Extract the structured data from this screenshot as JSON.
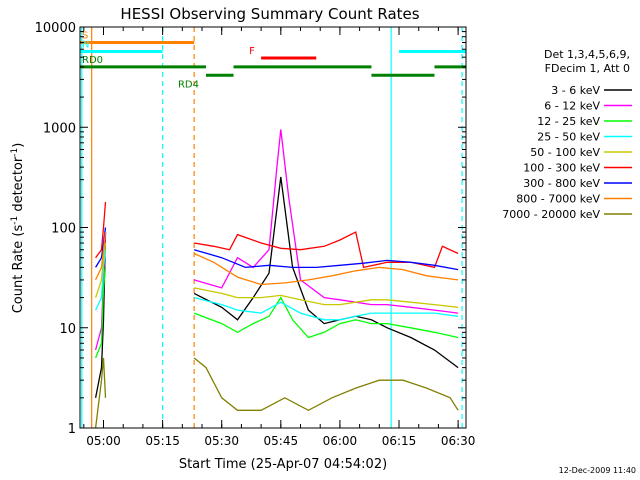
{
  "chart_data": {
    "type": "line",
    "title": "HESSI Observing Summary Count Rates",
    "xlabel": "Start Time (25-Apr-07 04:54:02)",
    "ylabel_main": "Count Rate (s",
    "ylabel_sup1": "-1",
    "ylabel_mid": " detector",
    "ylabel_sup2": "-1",
    "ylabel_end": ")",
    "xlim": [
      "04:54:02",
      "06:32:00"
    ],
    "ylim": [
      1,
      10000
    ],
    "yscale": "log",
    "x_ticks": [
      "05:00",
      "05:15",
      "05:30",
      "05:45",
      "06:00",
      "06:15",
      "06:30"
    ],
    "y_ticks": [
      "1",
      "10",
      "100",
      "1000",
      "10000"
    ],
    "footer": "12-Dec-2009 11:40",
    "legend_title": [
      "Det 1,3,4,5,6,9,",
      "FDecim 1, Att 0"
    ],
    "legend_position": "right",
    "series": [
      {
        "name": "3 - 6 keV",
        "color": "#000000",
        "points": [
          [
            "04:58:00",
            2
          ],
          [
            "04:59:30",
            4
          ],
          [
            "05:00:00",
            12
          ],
          [
            "05:00:30",
            90
          ],
          [
            "05:01:00",
            null
          ],
          [
            "05:23:00",
            22
          ],
          [
            "05:30:00",
            16
          ],
          [
            "05:34:00",
            12
          ],
          [
            "05:38:00",
            20
          ],
          [
            "05:42:00",
            35
          ],
          [
            "05:45:00",
            320
          ],
          [
            "05:48:00",
            40
          ],
          [
            "05:52:00",
            15
          ],
          [
            "05:56:00",
            11
          ],
          [
            "06:00:00",
            12
          ],
          [
            "06:04:00",
            13
          ],
          [
            "06:08:00",
            12
          ],
          [
            "06:12:00",
            10
          ],
          [
            "06:18:00",
            8
          ],
          [
            "06:24:00",
            6
          ],
          [
            "06:30:00",
            4
          ]
        ]
      },
      {
        "name": "6 - 12 keV",
        "color": "#ff00ff",
        "points": [
          [
            "04:58:00",
            6
          ],
          [
            "04:59:30",
            10
          ],
          [
            "05:00:00",
            30
          ],
          [
            "05:00:30",
            90
          ],
          [
            "05:01:00",
            null
          ],
          [
            "05:23:00",
            30
          ],
          [
            "05:30:00",
            25
          ],
          [
            "05:34:00",
            50
          ],
          [
            "05:38:00",
            40
          ],
          [
            "05:42:00",
            60
          ],
          [
            "05:44:00",
            400
          ],
          [
            "05:45:00",
            950
          ],
          [
            "05:47:00",
            200
          ],
          [
            "05:50:00",
            30
          ],
          [
            "05:56:00",
            20
          ],
          [
            "06:00:00",
            19
          ],
          [
            "06:04:00",
            18
          ],
          [
            "06:08:00",
            17
          ],
          [
            "06:12:00",
            17
          ],
          [
            "06:18:00",
            16
          ],
          [
            "06:24:00",
            15
          ],
          [
            "06:30:00",
            14
          ]
        ]
      },
      {
        "name": "12 - 25 keV",
        "color": "#00ff00",
        "points": [
          [
            "04:58:00",
            5
          ],
          [
            "04:59:30",
            7
          ],
          [
            "05:00:00",
            25
          ],
          [
            "05:00:30",
            40
          ],
          [
            "05:01:00",
            null
          ],
          [
            "05:23:00",
            14
          ],
          [
            "05:30:00",
            11
          ],
          [
            "05:34:00",
            9
          ],
          [
            "05:38:00",
            11
          ],
          [
            "05:42:00",
            13
          ],
          [
            "05:45:00",
            20
          ],
          [
            "05:48:00",
            12
          ],
          [
            "05:52:00",
            8
          ],
          [
            "05:56:00",
            9
          ],
          [
            "06:00:00",
            11
          ],
          [
            "06:04:00",
            12
          ],
          [
            "06:08:00",
            11
          ],
          [
            "06:12:00",
            11
          ],
          [
            "06:18:00",
            10
          ],
          [
            "06:24:00",
            9
          ],
          [
            "06:30:00",
            8
          ]
        ]
      },
      {
        "name": "25 - 50 keV",
        "color": "#00ffff",
        "points": [
          [
            "04:58:00",
            15
          ],
          [
            "04:59:30",
            20
          ],
          [
            "05:00:00",
            40
          ],
          [
            "05:00:30",
            60
          ],
          [
            "05:01:00",
            null
          ],
          [
            "05:23:00",
            20
          ],
          [
            "05:30:00",
            17
          ],
          [
            "05:34:00",
            15
          ],
          [
            "05:40:00",
            14
          ],
          [
            "05:45:00",
            18
          ],
          [
            "05:50:00",
            14
          ],
          [
            "05:56:00",
            12
          ],
          [
            "06:00:00",
            12
          ],
          [
            "06:04:00",
            13
          ],
          [
            "06:08:00",
            14
          ],
          [
            "06:12:00",
            14
          ],
          [
            "06:18:00",
            14
          ],
          [
            "06:24:00",
            14
          ],
          [
            "06:30:00",
            13
          ]
        ]
      },
      {
        "name": "50 - 100 keV",
        "color": "#c8c800",
        "points": [
          [
            "04:58:00",
            20
          ],
          [
            "04:59:30",
            30
          ],
          [
            "05:00:00",
            50
          ],
          [
            "05:00:30",
            70
          ],
          [
            "05:01:00",
            null
          ],
          [
            "05:23:00",
            25
          ],
          [
            "05:30:00",
            22
          ],
          [
            "05:34:00",
            20
          ],
          [
            "05:40:00",
            20
          ],
          [
            "05:45:00",
            21
          ],
          [
            "05:50:00",
            19
          ],
          [
            "05:56:00",
            17
          ],
          [
            "06:00:00",
            17
          ],
          [
            "06:04:00",
            18
          ],
          [
            "06:08:00",
            19
          ],
          [
            "06:12:00",
            19
          ],
          [
            "06:18:00",
            18
          ],
          [
            "06:24:00",
            17
          ],
          [
            "06:30:00",
            16
          ]
        ]
      },
      {
        "name": "100 - 300 keV",
        "color": "#ff0000",
        "points": [
          [
            "04:58:00",
            50
          ],
          [
            "04:59:30",
            60
          ],
          [
            "05:00:00",
            100
          ],
          [
            "05:00:30",
            180
          ],
          [
            "05:01:00",
            null
          ],
          [
            "05:23:00",
            70
          ],
          [
            "05:28:00",
            65
          ],
          [
            "05:32:00",
            60
          ],
          [
            "05:34:00",
            85
          ],
          [
            "05:40:00",
            70
          ],
          [
            "05:45:00",
            62
          ],
          [
            "05:50:00",
            60
          ],
          [
            "05:56:00",
            65
          ],
          [
            "06:00:00",
            75
          ],
          [
            "06:04:00",
            90
          ],
          [
            "06:06:00",
            40
          ],
          [
            "06:12:00",
            45
          ],
          [
            "06:18:00",
            45
          ],
          [
            "06:24:00",
            40
          ],
          [
            "06:26:00",
            65
          ],
          [
            "06:30:00",
            55
          ]
        ]
      },
      {
        "name": "300 - 800 keV",
        "color": "#0000ff",
        "points": [
          [
            "04:58:00",
            40
          ],
          [
            "04:59:30",
            50
          ],
          [
            "05:00:00",
            70
          ],
          [
            "05:00:30",
            100
          ],
          [
            "05:01:00",
            null
          ],
          [
            "05:23:00",
            60
          ],
          [
            "05:30:00",
            50
          ],
          [
            "05:36:00",
            40
          ],
          [
            "05:42:00",
            42
          ],
          [
            "05:48:00",
            40
          ],
          [
            "05:54:00",
            40
          ],
          [
            "06:00:00",
            42
          ],
          [
            "06:06:00",
            44
          ],
          [
            "06:12:00",
            47
          ],
          [
            "06:18:00",
            45
          ],
          [
            "06:24:00",
            42
          ],
          [
            "06:30:00",
            38
          ]
        ]
      },
      {
        "name": "800 - 7000 keV",
        "color": "#ff8000",
        "points": [
          [
            "04:58:00",
            30
          ],
          [
            "04:59:30",
            40
          ],
          [
            "05:00:00",
            60
          ],
          [
            "05:00:30",
            90
          ],
          [
            "05:01:00",
            null
          ],
          [
            "05:23:00",
            55
          ],
          [
            "05:28:00",
            45
          ],
          [
            "05:34:00",
            32
          ],
          [
            "05:40:00",
            27
          ],
          [
            "05:46:00",
            28
          ],
          [
            "05:52:00",
            30
          ],
          [
            "05:58:00",
            33
          ],
          [
            "06:04:00",
            37
          ],
          [
            "06:10:00",
            40
          ],
          [
            "06:16:00",
            38
          ],
          [
            "06:22:00",
            33
          ],
          [
            "06:30:00",
            30
          ]
        ]
      },
      {
        "name": "7000 - 20000 keV",
        "color": "#808000",
        "points": [
          [
            "04:58:00",
            1
          ],
          [
            "04:59:30",
            3
          ],
          [
            "05:00:00",
            5
          ],
          [
            "05:00:30",
            2
          ],
          [
            "05:01:00",
            null
          ],
          [
            "05:23:00",
            5
          ],
          [
            "05:26:00",
            4
          ],
          [
            "05:30:00",
            2
          ],
          [
            "05:34:00",
            1.5
          ],
          [
            "05:40:00",
            1.5
          ],
          [
            "05:46:00",
            2
          ],
          [
            "05:52:00",
            1.5
          ],
          [
            "05:58:00",
            2
          ],
          [
            "06:04:00",
            2.5
          ],
          [
            "06:10:00",
            3
          ],
          [
            "06:16:00",
            3
          ],
          [
            "06:22:00",
            2.5
          ],
          [
            "06:28:00",
            2
          ],
          [
            "06:30:00",
            1.5
          ]
        ]
      }
    ],
    "flags": [
      {
        "label": "S",
        "color": "#ff8000",
        "start": "04:54:02",
        "end": "05:23:00",
        "y": 7000
      },
      {
        "label": "N",
        "color": "#00ffff",
        "start": "04:54:02",
        "end": "05:15:00",
        "y": 5700
      },
      {
        "label": "",
        "color": "#00ffff",
        "start": "06:15:00",
        "end": "06:32:00",
        "y": 5700
      },
      {
        "label": "F",
        "color": "#ff0000",
        "start": "05:40:00",
        "end": "05:54:00",
        "y": 4900
      },
      {
        "label": "RD0",
        "color": "#008000",
        "start": "04:54:02",
        "end": "05:26:00",
        "y": 4000
      },
      {
        "label": "RD4",
        "color": "#008000",
        "start": "05:26:00",
        "end": "05:33:00",
        "y": 3300
      },
      {
        "label": "",
        "color": "#008000",
        "start": "05:33:00",
        "end": "06:08:00",
        "y": 4000
      },
      {
        "label": "",
        "color": "#008000",
        "start": "06:08:00",
        "end": "06:24:00",
        "y": 3300
      },
      {
        "label": "",
        "color": "#008000",
        "start": "06:24:00",
        "end": "06:32:00",
        "y": 4000
      }
    ],
    "vlines": [
      {
        "time": "04:54:30",
        "color": "#00ffff",
        "dashed": false
      },
      {
        "time": "04:57:00",
        "color": "#ff8000",
        "dashed": false
      },
      {
        "time": "05:15:00",
        "color": "#00ffff",
        "dashed": true
      },
      {
        "time": "05:23:00",
        "color": "#ff8000",
        "dashed": true
      },
      {
        "time": "06:13:00",
        "color": "#00ffff",
        "dashed": false
      },
      {
        "time": "06:31:00",
        "color": "#00ffff",
        "dashed": true
      }
    ]
  }
}
